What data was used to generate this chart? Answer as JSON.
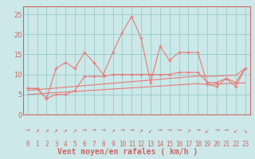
{
  "xlabel": "Vent moyen/en rafales ( km/h )",
  "bg_color": "#cce8e8",
  "grid_color": "#99cccc",
  "line_color": "#e87878",
  "spine_color": "#cc6666",
  "xlim": [
    -0.5,
    23.5
  ],
  "ylim": [
    0,
    27
  ],
  "yticks": [
    0,
    5,
    10,
    15,
    20,
    25
  ],
  "xticks": [
    0,
    1,
    2,
    3,
    4,
    5,
    6,
    7,
    8,
    9,
    10,
    11,
    12,
    13,
    14,
    15,
    16,
    17,
    18,
    19,
    20,
    21,
    22,
    23
  ],
  "hours": [
    0,
    1,
    2,
    3,
    4,
    5,
    6,
    7,
    8,
    9,
    10,
    11,
    12,
    13,
    14,
    15,
    16,
    17,
    18,
    19,
    20,
    21,
    22,
    23
  ],
  "wind_mean": [
    6.5,
    6.5,
    4.0,
    11.5,
    13.0,
    11.5,
    15.5,
    13.0,
    10.0,
    15.5,
    20.5,
    24.5,
    19.0,
    8.0,
    17.0,
    13.5,
    15.5,
    15.5,
    15.5,
    7.5,
    7.0,
    9.0,
    7.0,
    11.5
  ],
  "wind_low": [
    6.5,
    6.5,
    4.0,
    5.0,
    5.0,
    6.0,
    9.5,
    9.5,
    9.5,
    10.0,
    10.0,
    10.0,
    10.0,
    10.0,
    10.0,
    10.0,
    10.5,
    10.5,
    10.5,
    8.0,
    8.0,
    9.0,
    8.0,
    11.5
  ],
  "trend_low": [
    5.0,
    5.15,
    5.3,
    5.45,
    5.6,
    5.75,
    5.9,
    6.05,
    6.2,
    6.35,
    6.5,
    6.65,
    6.8,
    6.95,
    7.1,
    7.25,
    7.4,
    7.55,
    7.7,
    7.5,
    7.6,
    7.7,
    7.8,
    7.9
  ],
  "trend_high": [
    6.0,
    6.2,
    6.4,
    6.6,
    6.8,
    7.0,
    7.2,
    7.4,
    7.6,
    7.8,
    8.0,
    8.2,
    8.4,
    8.6,
    8.8,
    9.0,
    9.2,
    9.4,
    9.6,
    9.5,
    9.6,
    9.7,
    9.8,
    11.5
  ],
  "xlabel_fontsize": 7,
  "tick_fontsize": 6,
  "arrow_chars": [
    "→",
    "↗",
    "↗",
    "↗",
    "↗",
    "↗",
    "→",
    "→",
    "→",
    "↗",
    "→",
    "→",
    "↗",
    "↙",
    "→",
    "→",
    "→",
    "↗",
    "→",
    "↙",
    "→",
    "→",
    "↙",
    "↘"
  ]
}
